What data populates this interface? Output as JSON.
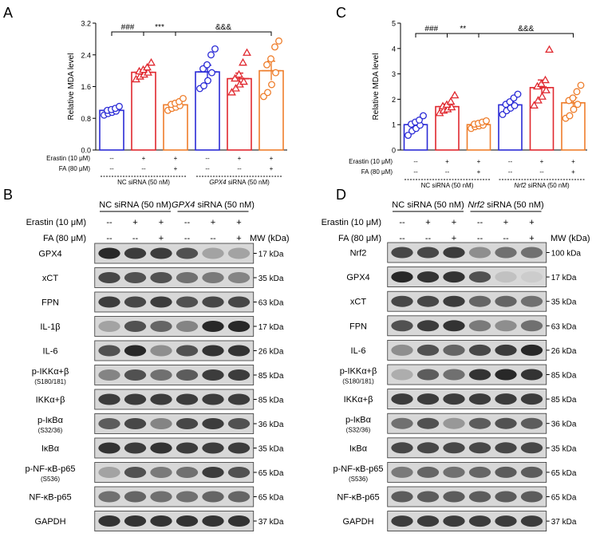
{
  "chart_data": [
    {
      "panel": "A",
      "type": "bar",
      "ylabel": "Relative MDA level",
      "ylim": [
        0,
        3.2
      ],
      "yticks": [
        "0.0",
        "0.8",
        "1.6",
        "2.4",
        "3.2"
      ],
      "markers": [
        "circle",
        "triangle",
        "circle",
        "circle",
        "triangle",
        "circle"
      ],
      "colors": [
        "#2b2bd6",
        "#e0282f",
        "#ee7d2b",
        "#2b2bd6",
        "#e0282f",
        "#ee7d2b"
      ],
      "values": [
        1.0,
        1.96,
        1.14,
        1.97,
        1.8,
        2.0
      ],
      "errors": [
        0.06,
        0.06,
        0.06,
        0.17,
        0.14,
        0.24
      ],
      "points": [
        [
          0.88,
          0.92,
          0.95,
          0.98,
          1.0,
          1.02,
          1.05,
          1.1
        ],
        [
          1.78,
          1.85,
          1.9,
          1.95,
          1.98,
          2.02,
          2.08,
          2.2
        ],
        [
          1.0,
          1.05,
          1.08,
          1.12,
          1.15,
          1.18,
          1.22,
          1.3
        ],
        [
          1.55,
          1.62,
          1.75,
          1.95,
          2.05,
          2.15,
          2.4,
          2.55
        ],
        [
          1.45,
          1.55,
          1.65,
          1.72,
          1.8,
          1.9,
          2.2,
          2.45
        ],
        [
          1.35,
          1.45,
          1.65,
          1.95,
          2.15,
          2.3,
          2.6,
          2.75
        ]
      ],
      "conditions": [
        {
          "label": "Erastin (10 μM)",
          "values": [
            "--",
            "+",
            "+",
            "--",
            "+",
            "+"
          ]
        },
        {
          "label": "FA (80 μM)",
          "values": [
            "--",
            "--",
            "+",
            "--",
            "--",
            "+"
          ]
        }
      ],
      "groups": [
        "NC siRNA (50 nM)",
        "GPX4 siRNA (50 nM)"
      ],
      "significance": [
        "###",
        "***",
        "&&&"
      ]
    },
    {
      "panel": "C",
      "type": "bar",
      "ylabel": "Relative MDA level",
      "ylim": [
        0,
        5
      ],
      "yticks": [
        "0",
        "1",
        "2",
        "3",
        "4",
        "5"
      ],
      "markers": [
        "circle",
        "triangle",
        "circle",
        "circle",
        "triangle",
        "circle"
      ],
      "colors": [
        "#2b2bd6",
        "#e0282f",
        "#ee7d2b",
        "#2b2bd6",
        "#e0282f",
        "#ee7d2b"
      ],
      "values": [
        1.0,
        1.71,
        1.0,
        1.78,
        2.46,
        1.86
      ],
      "errors": [
        0.1,
        0.1,
        0.06,
        0.13,
        0.3,
        0.2
      ],
      "points": [
        [
          0.58,
          0.75,
          0.85,
          0.98,
          1.02,
          1.1,
          1.18,
          1.35
        ],
        [
          1.45,
          1.55,
          1.6,
          1.68,
          1.72,
          1.78,
          1.9,
          2.15
        ],
        [
          0.85,
          0.92,
          0.95,
          0.98,
          1.02,
          1.05,
          1.1,
          1.15
        ],
        [
          1.4,
          1.55,
          1.65,
          1.75,
          1.8,
          1.9,
          2.05,
          2.2
        ],
        [
          1.75,
          1.95,
          2.1,
          2.35,
          2.5,
          2.6,
          2.75,
          3.95
        ],
        [
          1.25,
          1.35,
          1.6,
          1.8,
          1.95,
          2.05,
          2.3,
          2.55
        ]
      ],
      "conditions": [
        {
          "label": "Erastin (10 μM)",
          "values": [
            "--",
            "+",
            "+",
            "--",
            "+",
            "+"
          ]
        },
        {
          "label": "FA (80 μM)",
          "values": [
            "--",
            "--",
            "+",
            "--",
            "--",
            "+"
          ]
        }
      ],
      "groups": [
        "NC siRNA (50 nM)",
        "Nrf2 siRNA (50 nM)"
      ],
      "significance": [
        "###",
        "**",
        "&&&"
      ]
    },
    {
      "panel": "B",
      "type": "western_blot",
      "groups": [
        "NC siRNA (50 nM)",
        "GPX4 siRNA (50 nM)"
      ],
      "conditions": [
        {
          "label": "Erastin (10 μM)",
          "values": [
            "--",
            "+",
            "+",
            "--",
            "+",
            "+"
          ]
        },
        {
          "label": "FA (80 μM)",
          "values": [
            "--",
            "--",
            "+",
            "--",
            "--",
            "+"
          ]
        }
      ],
      "mw_header": "MW (kDa)",
      "bands": [
        {
          "label": "GPX4",
          "sub": "",
          "mw": "17 kDa",
          "intensity": [
            0.95,
            0.85,
            0.85,
            0.75,
            0.35,
            0.35
          ]
        },
        {
          "label": "xCT",
          "sub": "",
          "mw": "35 kDa",
          "intensity": [
            0.8,
            0.75,
            0.75,
            0.6,
            0.55,
            0.5
          ]
        },
        {
          "label": "FPN",
          "sub": "",
          "mw": "63 kDa",
          "intensity": [
            0.85,
            0.8,
            0.85,
            0.75,
            0.8,
            0.8
          ]
        },
        {
          "label": "IL-1β",
          "sub": "",
          "mw": "17 kDa",
          "intensity": [
            0.35,
            0.75,
            0.65,
            0.5,
            0.95,
            0.95
          ]
        },
        {
          "label": "IL-6",
          "sub": "",
          "mw": "26 kDa",
          "intensity": [
            0.75,
            0.95,
            0.45,
            0.75,
            0.9,
            0.9
          ]
        },
        {
          "label": "p-IKKα+β",
          "sub": "(S180/181)",
          "mw": "85 kDa",
          "intensity": [
            0.5,
            0.75,
            0.6,
            0.7,
            0.85,
            0.85
          ]
        },
        {
          "label": "IKKα+β",
          "sub": "",
          "mw": "85 kDa",
          "intensity": [
            0.85,
            0.85,
            0.85,
            0.85,
            0.85,
            0.85
          ]
        },
        {
          "label": "p-IκBα",
          "sub": "(S32/36)",
          "mw": "36 kDa",
          "intensity": [
            0.7,
            0.8,
            0.5,
            0.8,
            0.85,
            0.75
          ]
        },
        {
          "label": "IκBα",
          "sub": "",
          "mw": "35 kDa",
          "intensity": [
            0.9,
            0.85,
            0.9,
            0.85,
            0.85,
            0.85
          ]
        },
        {
          "label": "p-NF-κB-p65",
          "sub": "(S536)",
          "mw": "65 kDa",
          "intensity": [
            0.35,
            0.75,
            0.55,
            0.6,
            0.85,
            0.75
          ]
        },
        {
          "label": "NF-κB-p65",
          "sub": "",
          "mw": "65 kDa",
          "intensity": [
            0.6,
            0.65,
            0.6,
            0.6,
            0.65,
            0.65
          ]
        },
        {
          "label": "GAPDH",
          "sub": "",
          "mw": "37 kDa",
          "intensity": [
            0.9,
            0.9,
            0.9,
            0.9,
            0.9,
            0.9
          ]
        }
      ]
    },
    {
      "panel": "D",
      "type": "western_blot",
      "groups": [
        "NC siRNA (50 nM)",
        "Nrf2 siRNA (50 nM)"
      ],
      "conditions": [
        {
          "label": "Erastin (10 μM)",
          "values": [
            "--",
            "+",
            "+",
            "--",
            "+",
            "+"
          ]
        },
        {
          "label": "FA (80 μM)",
          "values": [
            "--",
            "--",
            "+",
            "--",
            "--",
            "+"
          ]
        }
      ],
      "mw_header": "MW (kDa)",
      "bands": [
        {
          "label": "Nrf2",
          "sub": "",
          "mw": "100 kDa",
          "intensity": [
            0.8,
            0.8,
            0.85,
            0.45,
            0.6,
            0.6
          ]
        },
        {
          "label": "GPX4",
          "sub": "",
          "mw": "17 kDa",
          "intensity": [
            0.95,
            0.9,
            0.9,
            0.75,
            0.2,
            0.15
          ]
        },
        {
          "label": "xCT",
          "sub": "",
          "mw": "35 kDa",
          "intensity": [
            0.8,
            0.8,
            0.85,
            0.65,
            0.65,
            0.6
          ]
        },
        {
          "label": "FPN",
          "sub": "",
          "mw": "63 kDa",
          "intensity": [
            0.75,
            0.85,
            0.9,
            0.55,
            0.45,
            0.6
          ]
        },
        {
          "label": "IL-6",
          "sub": "",
          "mw": "26 kDa",
          "intensity": [
            0.45,
            0.75,
            0.65,
            0.8,
            0.85,
            0.95
          ]
        },
        {
          "label": "p-IKKα+β",
          "sub": "(S180/181)",
          "mw": "85 kDa",
          "intensity": [
            0.3,
            0.7,
            0.6,
            0.9,
            0.95,
            0.9
          ]
        },
        {
          "label": "IKKα+β",
          "sub": "",
          "mw": "85 kDa",
          "intensity": [
            0.85,
            0.85,
            0.85,
            0.85,
            0.85,
            0.85
          ]
        },
        {
          "label": "p-IκBα",
          "sub": "(S32/36)",
          "mw": "36 kDa",
          "intensity": [
            0.6,
            0.75,
            0.4,
            0.7,
            0.75,
            0.7
          ]
        },
        {
          "label": "IκBα",
          "sub": "",
          "mw": "35 kDa",
          "intensity": [
            0.8,
            0.8,
            0.8,
            0.8,
            0.8,
            0.8
          ]
        },
        {
          "label": "p-NF-κB-p65",
          "sub": "(S536)",
          "mw": "65 kDa",
          "intensity": [
            0.55,
            0.65,
            0.6,
            0.65,
            0.7,
            0.7
          ]
        },
        {
          "label": "NF-κB-p65",
          "sub": "",
          "mw": "65 kDa",
          "intensity": [
            0.7,
            0.7,
            0.7,
            0.7,
            0.7,
            0.7
          ]
        },
        {
          "label": "GAPDH",
          "sub": "",
          "mw": "37 kDa",
          "intensity": [
            0.85,
            0.85,
            0.85,
            0.85,
            0.85,
            0.85
          ]
        }
      ]
    }
  ]
}
